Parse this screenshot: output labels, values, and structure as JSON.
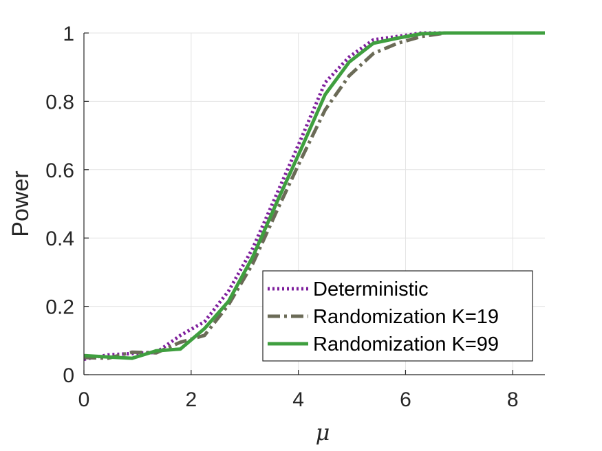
{
  "chart_data": {
    "type": "line",
    "title": "",
    "xlabel": "μ",
    "ylabel": "Power",
    "xlim": [
      0,
      8.6
    ],
    "ylim": [
      0,
      1
    ],
    "xticks": [
      0,
      2,
      4,
      6,
      8
    ],
    "yticks": [
      0,
      0.2,
      0.4,
      0.6,
      0.8,
      1
    ],
    "xtick_labels": [
      "0",
      "2",
      "4",
      "6",
      "8"
    ],
    "ytick_labels": [
      "0",
      "0.2",
      "0.4",
      "0.6",
      "0.8",
      "1"
    ],
    "grid": true,
    "legend_position": "bottom-right",
    "series": [
      {
        "name": "Deterministic",
        "color": "#7e1e9c",
        "style": "dotted",
        "x": [
          0,
          0.45,
          0.9,
          1.35,
          1.8,
          2.25,
          2.7,
          3.15,
          3.6,
          4.05,
          4.5,
          4.95,
          5.4,
          5.85,
          6.3,
          6.75,
          7.2,
          7.65,
          8.1,
          8.6
        ],
        "y": [
          0.045,
          0.058,
          0.062,
          0.065,
          0.115,
          0.155,
          0.245,
          0.37,
          0.53,
          0.69,
          0.855,
          0.93,
          0.98,
          0.99,
          1.0,
          1.0,
          1.0,
          1.0,
          1.0,
          1.0
        ]
      },
      {
        "name": "Randomization K=19",
        "color": "#6b6b57",
        "style": "dashdot",
        "x": [
          0,
          0.45,
          0.9,
          1.35,
          1.8,
          2.25,
          2.7,
          3.15,
          3.6,
          4.05,
          4.5,
          4.95,
          5.4,
          5.85,
          6.3,
          6.75,
          7.2,
          7.65,
          8.1,
          8.6
        ],
        "y": [
          0.05,
          0.048,
          0.066,
          0.064,
          0.095,
          0.115,
          0.205,
          0.325,
          0.48,
          0.63,
          0.775,
          0.875,
          0.94,
          0.97,
          0.99,
          1.0,
          1.0,
          1.0,
          1.0,
          1.0
        ]
      },
      {
        "name": "Randomization K=99",
        "color": "#3f9f3f",
        "style": "solid",
        "x": [
          0,
          0.45,
          0.9,
          1.35,
          1.8,
          2.25,
          2.7,
          3.15,
          3.6,
          4.05,
          4.5,
          4.95,
          5.4,
          5.85,
          6.3,
          6.75,
          7.2,
          7.65,
          8.1,
          8.6
        ],
        "y": [
          0.056,
          0.052,
          0.048,
          0.07,
          0.075,
          0.135,
          0.215,
          0.345,
          0.505,
          0.66,
          0.82,
          0.915,
          0.97,
          0.985,
          0.998,
          1.0,
          1.0,
          1.0,
          1.0,
          1.0
        ]
      }
    ]
  }
}
